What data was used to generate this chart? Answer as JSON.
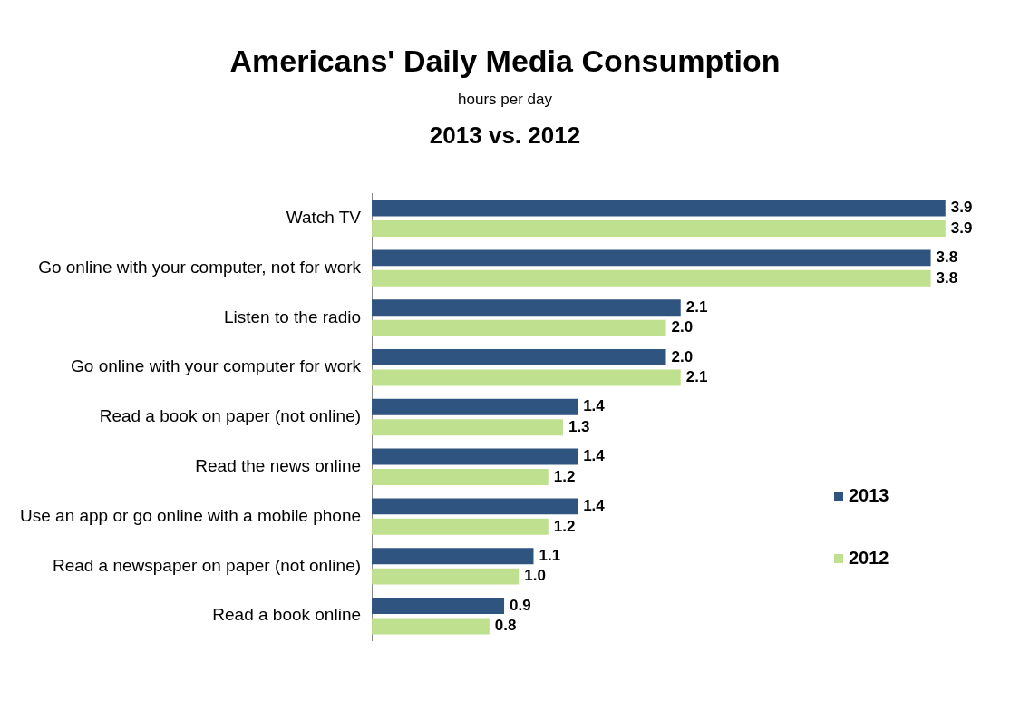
{
  "chart_data": {
    "type": "bar",
    "orientation": "horizontal",
    "title": "Americans' Daily Media Consumption",
    "subtitle": "hours per day",
    "annotations": [
      "2013 vs. 2012"
    ],
    "categories": [
      "Watch TV",
      "Go online with your computer, not for work",
      "Listen to the radio",
      "Go online with your computer for work",
      "Read a book on paper (not online)",
      "Read the news online",
      "Use an app or go online with a mobile phone",
      "Read a newspaper on paper (not online)",
      "Read a book online"
    ],
    "series": [
      {
        "name": "2013",
        "color": "#2f5480",
        "values": [
          3.9,
          3.8,
          2.1,
          2.0,
          1.4,
          1.4,
          1.4,
          1.1,
          0.9
        ],
        "value_labels": [
          "3.9",
          "3.8",
          "2.1",
          "2.0",
          "1.4",
          "1.4",
          "1.4",
          "1.1",
          "0.9"
        ]
      },
      {
        "name": "2012",
        "color": "#bfe08e",
        "values": [
          3.9,
          3.8,
          2.0,
          2.1,
          1.3,
          1.2,
          1.2,
          1.0,
          0.8
        ],
        "value_labels": [
          "3.9",
          "3.8",
          "2.0",
          "2.1",
          "1.3",
          "1.2",
          "1.2",
          "1.0",
          "0.8"
        ]
      }
    ],
    "legend": "bottom right",
    "grid": false
  }
}
